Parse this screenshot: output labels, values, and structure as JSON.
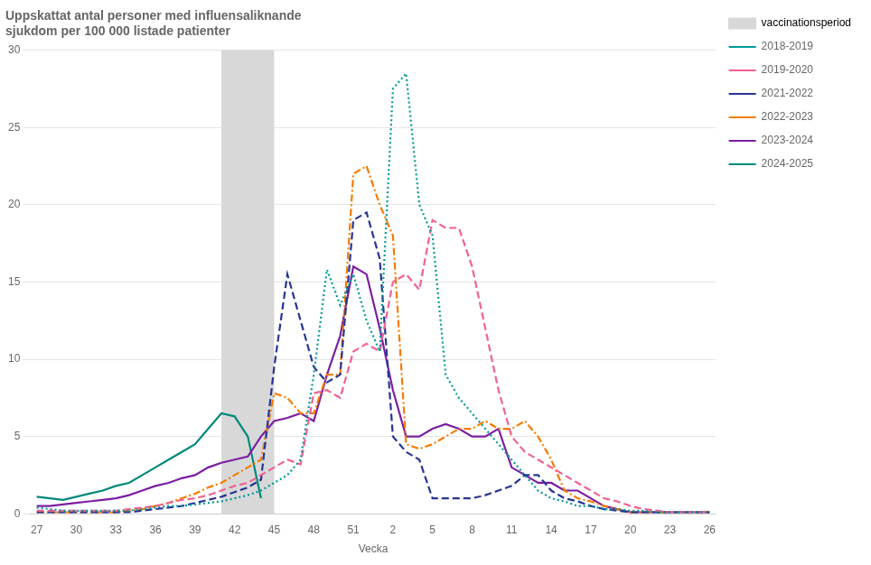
{
  "chart_data": {
    "type": "line",
    "title": "Uppskattat antal personer med influensaliknande\nsjukdom per 100 000 listade patienter",
    "x_label": "Vecka",
    "categories": [
      "27",
      null,
      null,
      "30",
      null,
      null,
      "33",
      null,
      null,
      "36",
      null,
      null,
      "39",
      null,
      null,
      "42",
      null,
      null,
      "45",
      null,
      null,
      "48",
      null,
      null,
      "51",
      null,
      null,
      "2",
      null,
      null,
      "5",
      null,
      null,
      "8",
      null,
      null,
      "11",
      null,
      null,
      "14",
      null,
      null,
      "17",
      null,
      null,
      "20",
      null,
      null,
      "23",
      null,
      null,
      "26"
    ],
    "ylim": [
      0,
      30
    ],
    "yticks": [
      0,
      5,
      10,
      15,
      20,
      25,
      30
    ],
    "grid": true,
    "legend": "right",
    "spans": [
      {
        "name": "vaccinationsperiod",
        "x_start": 14,
        "x_end": 18,
        "color": "#d8d8d8"
      }
    ],
    "series": [
      {
        "name": "2018-2019",
        "color": "#009999",
        "line_style": "dotted",
        "values": [
          0.4,
          0.3,
          0.2,
          0.2,
          0.2,
          0.2,
          0.2,
          0.2,
          0.3,
          0.4,
          0.5,
          0.5,
          0.6,
          0.7,
          0.8,
          1.0,
          1.2,
          1.5,
          2.0,
          2.5,
          3.5,
          9.0,
          15.8,
          13.5,
          15.5,
          12.5,
          10.5,
          27.5,
          28.5,
          20.0,
          18.0,
          9.0,
          7.5,
          6.5,
          5.5,
          4.5,
          3.5,
          2.5,
          1.5,
          1.0,
          0.8,
          0.5,
          0.5,
          0.3,
          0.3,
          0.2,
          0.2,
          0.1,
          0.1,
          0.1,
          0.1,
          0.1
        ]
      },
      {
        "name": "2019-2020",
        "color": "#F06292",
        "line_style": "dashed",
        "values": [
          0.2,
          0.2,
          0.2,
          0.2,
          0.2,
          0.2,
          0.2,
          0.3,
          0.4,
          0.5,
          0.7,
          0.9,
          1.0,
          1.2,
          1.5,
          1.8,
          2.0,
          2.5,
          3.0,
          3.5,
          3.2,
          7.8,
          8.0,
          7.5,
          10.5,
          11.0,
          10.5,
          15.0,
          15.5,
          14.5,
          19.0,
          18.5,
          18.5,
          16.0,
          12.0,
          8.0,
          5.0,
          4.0,
          3.5,
          3.0,
          2.5,
          2.0,
          1.5,
          1.0,
          0.8,
          0.5,
          0.3,
          0.2,
          0.1,
          0.1,
          0.1,
          0.1
        ]
      },
      {
        "name": "2021-2022",
        "color": "#283593",
        "line_style": "dashed",
        "values": [
          0.1,
          0.1,
          0.1,
          0.1,
          0.1,
          0.1,
          0.1,
          0.1,
          0.2,
          0.3,
          0.4,
          0.5,
          0.7,
          0.9,
          1.1,
          1.4,
          1.7,
          2.2,
          9.5,
          15.5,
          12.5,
          9.5,
          8.5,
          9.0,
          19.0,
          19.5,
          16.5,
          5.0,
          4.0,
          3.5,
          1.0,
          1.0,
          1.0,
          1.0,
          1.2,
          1.5,
          1.8,
          2.5,
          2.5,
          1.5,
          1.0,
          0.8,
          0.5,
          0.3,
          0.2,
          0.1,
          0.1,
          0.1,
          0.1,
          0.1,
          0.1,
          0.1
        ]
      },
      {
        "name": "2022-2023",
        "color": "#F57C00",
        "line_style": "dashdot",
        "values": [
          0.1,
          0.1,
          0.1,
          0.1,
          0.1,
          0.1,
          0.1,
          0.2,
          0.3,
          0.5,
          0.7,
          1.0,
          1.3,
          1.7,
          2.0,
          2.5,
          3.0,
          3.5,
          7.8,
          7.5,
          6.5,
          6.5,
          9.0,
          9.0,
          22.0,
          22.5,
          20.0,
          18.0,
          4.5,
          4.2,
          4.5,
          5.0,
          5.5,
          5.5,
          6.0,
          5.5,
          5.5,
          6.0,
          5.0,
          3.5,
          1.5,
          1.0,
          0.8,
          0.5,
          0.3,
          0.1,
          0.1,
          0.1,
          0.1,
          0.1,
          0.1,
          0.1
        ]
      },
      {
        "name": "2023-2024",
        "color": "#7B1FA2",
        "line_style": "solid",
        "values": [
          0.5,
          0.5,
          0.6,
          0.7,
          0.8,
          0.9,
          1.0,
          1.2,
          1.5,
          1.8,
          2.0,
          2.3,
          2.5,
          3.0,
          3.3,
          3.5,
          3.7,
          5.0,
          6.0,
          6.2,
          6.5,
          6.0,
          9.0,
          11.5,
          16.0,
          15.5,
          12.0,
          8.0,
          5.0,
          5.0,
          5.5,
          5.8,
          5.5,
          5.0,
          5.0,
          5.5,
          3.0,
          2.5,
          2.0,
          2.0,
          1.5,
          1.5,
          1.0,
          0.5,
          0.3,
          0.1,
          0.1,
          0.1,
          0.1,
          0.1,
          0.1,
          0.1
        ]
      },
      {
        "name": "2024-2025",
        "color": "#00897B",
        "line_style": "solid",
        "values": [
          1.1,
          1.0,
          0.9,
          1.1,
          1.3,
          1.5,
          1.8,
          2.0,
          2.5,
          3.0,
          3.5,
          4.0,
          4.5,
          5.5,
          6.5,
          6.3,
          5.0,
          1.0,
          null,
          null,
          null,
          null,
          null,
          null,
          null,
          null,
          null,
          null,
          null,
          null,
          null,
          null,
          null,
          null,
          null,
          null,
          null,
          null,
          null,
          null,
          null,
          null,
          null,
          null,
          null,
          null,
          null,
          null,
          null,
          null,
          null,
          null
        ]
      }
    ]
  }
}
